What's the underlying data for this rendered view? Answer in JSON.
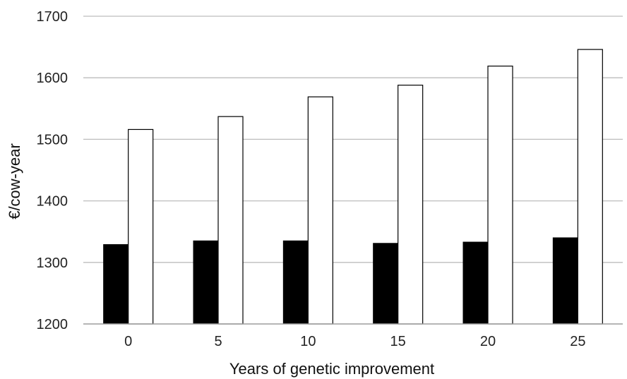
{
  "chart_data": {
    "type": "bar",
    "xlabel": "Years of genetic improvement",
    "ylabel": "€/cow-year",
    "categories": [
      "0",
      "5",
      "10",
      "15",
      "20",
      "25"
    ],
    "ylim": [
      1200,
      1700
    ],
    "yticks": [
      1200,
      1300,
      1400,
      1500,
      1600,
      1700
    ],
    "grid": true,
    "series": [
      {
        "values": [
          1329,
          1335,
          1335,
          1331,
          1333,
          1340
        ],
        "color": "#000000"
      },
      {
        "values": [
          1516,
          1537,
          1569,
          1588,
          1619,
          1646
        ],
        "color": "#ffffff"
      }
    ]
  }
}
